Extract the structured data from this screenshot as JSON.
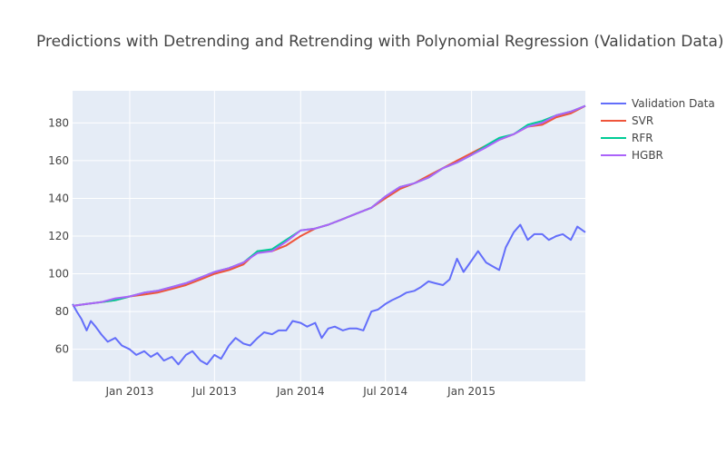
{
  "chart_data": {
    "type": "line",
    "title": "Predictions with Detrending and Retrending with Polynomial Regression (Validation Data)",
    "xlabel": "",
    "ylabel": "",
    "x_range": [
      "2012-09-01",
      "2015-09-01"
    ],
    "ylim": [
      43,
      197
    ],
    "x_ticks": [
      {
        "date": "2013-01-01",
        "label": "Jan 2013"
      },
      {
        "date": "2013-07-01",
        "label": "Jul 2013"
      },
      {
        "date": "2014-01-01",
        "label": "Jan 2014"
      },
      {
        "date": "2014-07-01",
        "label": "Jul 2014"
      },
      {
        "date": "2015-01-01",
        "label": "Jan 2015"
      }
    ],
    "y_ticks": [
      60,
      80,
      100,
      120,
      140,
      160,
      180
    ],
    "grid": true,
    "legend_position": "top-right",
    "plot_background": "#e5ecf6",
    "series": [
      {
        "name": "Validation Data",
        "color": "#636efa",
        "x": [
          "2012-09-01",
          "2012-09-10",
          "2012-09-20",
          "2012-10-01",
          "2012-10-10",
          "2012-10-20",
          "2012-11-01",
          "2012-11-15",
          "2012-12-01",
          "2012-12-15",
          "2013-01-01",
          "2013-01-15",
          "2013-02-01",
          "2013-02-15",
          "2013-03-01",
          "2013-03-15",
          "2013-04-01",
          "2013-04-15",
          "2013-05-01",
          "2013-05-15",
          "2013-06-01",
          "2013-06-15",
          "2013-07-01",
          "2013-07-15",
          "2013-08-01",
          "2013-08-15",
          "2013-09-01",
          "2013-09-15",
          "2013-10-01",
          "2013-10-15",
          "2013-11-01",
          "2013-11-15",
          "2013-12-01",
          "2013-12-15",
          "2014-01-01",
          "2014-01-15",
          "2014-02-01",
          "2014-02-15",
          "2014-03-01",
          "2014-03-15",
          "2014-04-01",
          "2014-04-15",
          "2014-05-01",
          "2014-05-15",
          "2014-06-01",
          "2014-06-15",
          "2014-07-01",
          "2014-07-15",
          "2014-08-01",
          "2014-08-15",
          "2014-09-01",
          "2014-09-15",
          "2014-10-01",
          "2014-10-15",
          "2014-11-01",
          "2014-11-15",
          "2014-12-01",
          "2014-12-15",
          "2015-01-01",
          "2015-01-15",
          "2015-02-01",
          "2015-02-15",
          "2015-03-01",
          "2015-03-15",
          "2015-04-01",
          "2015-04-15",
          "2015-05-01",
          "2015-05-15",
          "2015-06-01",
          "2015-06-15",
          "2015-07-01",
          "2015-07-15",
          "2015-08-01",
          "2015-08-15",
          "2015-09-01"
        ],
        "values": [
          84,
          80,
          76,
          70,
          75,
          72,
          68,
          64,
          66,
          62,
          60,
          57,
          59,
          56,
          58,
          54,
          56,
          52,
          57,
          59,
          54,
          52,
          57,
          55,
          62,
          66,
          63,
          62,
          66,
          69,
          68,
          70,
          70,
          75,
          74,
          72,
          74,
          66,
          71,
          72,
          70,
          71,
          71,
          70,
          80,
          81,
          84,
          86,
          88,
          90,
          91,
          93,
          96,
          95,
          94,
          97,
          108,
          101,
          107,
          112,
          106,
          104,
          102,
          114,
          122,
          126,
          118,
          121,
          121,
          118,
          120,
          121,
          118,
          125,
          122
        ]
      },
      {
        "name": "SVR",
        "color": "#ef553b",
        "x": [
          "2012-09-01",
          "2012-10-01",
          "2012-11-01",
          "2012-12-01",
          "2013-01-01",
          "2013-02-01",
          "2013-03-01",
          "2013-04-01",
          "2013-05-01",
          "2013-06-01",
          "2013-07-01",
          "2013-08-01",
          "2013-09-01",
          "2013-10-01",
          "2013-11-01",
          "2013-12-01",
          "2014-01-01",
          "2014-02-01",
          "2014-03-01",
          "2014-04-01",
          "2014-05-01",
          "2014-06-01",
          "2014-07-01",
          "2014-08-01",
          "2014-09-01",
          "2014-10-01",
          "2014-11-01",
          "2014-12-01",
          "2015-01-01",
          "2015-02-01",
          "2015-03-01",
          "2015-04-01",
          "2015-05-01",
          "2015-06-01",
          "2015-07-01",
          "2015-08-01",
          "2015-09-01"
        ],
        "values": [
          83,
          84,
          85,
          86,
          88,
          89,
          90,
          92,
          94,
          97,
          100,
          102,
          105,
          112,
          112,
          115,
          120,
          124,
          126,
          129,
          132,
          135,
          140,
          145,
          148,
          152,
          156,
          160,
          164,
          168,
          171,
          174,
          178,
          179,
          183,
          185,
          189
        ]
      },
      {
        "name": "RFR",
        "color": "#00cc96",
        "x": [
          "2012-09-01",
          "2012-10-01",
          "2012-11-01",
          "2012-12-01",
          "2013-01-01",
          "2013-02-01",
          "2013-03-01",
          "2013-04-01",
          "2013-05-01",
          "2013-06-01",
          "2013-07-01",
          "2013-08-01",
          "2013-09-01",
          "2013-10-01",
          "2013-11-01",
          "2013-12-01",
          "2014-01-01",
          "2014-02-01",
          "2014-03-01",
          "2014-04-01",
          "2014-05-01",
          "2014-06-01",
          "2014-07-01",
          "2014-08-01",
          "2014-09-01",
          "2014-10-01",
          "2014-11-01",
          "2014-12-01",
          "2015-01-01",
          "2015-02-01",
          "2015-03-01",
          "2015-04-01",
          "2015-05-01",
          "2015-06-01",
          "2015-07-01",
          "2015-08-01",
          "2015-09-01"
        ],
        "values": [
          83,
          84,
          85,
          86,
          88,
          90,
          91,
          93,
          95,
          98,
          101,
          103,
          106,
          112,
          113,
          118,
          123,
          124,
          126,
          129,
          132,
          135,
          141,
          146,
          148,
          151,
          156,
          159,
          163,
          168,
          172,
          174,
          179,
          181,
          184,
          186,
          189
        ]
      },
      {
        "name": "HGBR",
        "color": "#ab63fa",
        "x": [
          "2012-09-01",
          "2012-10-01",
          "2012-11-01",
          "2012-12-01",
          "2013-01-01",
          "2013-02-01",
          "2013-03-01",
          "2013-04-01",
          "2013-05-01",
          "2013-06-01",
          "2013-07-01",
          "2013-08-01",
          "2013-09-01",
          "2013-10-01",
          "2013-11-01",
          "2013-12-01",
          "2014-01-01",
          "2014-02-01",
          "2014-03-01",
          "2014-04-01",
          "2014-05-01",
          "2014-06-01",
          "2014-07-01",
          "2014-08-01",
          "2014-09-01",
          "2014-10-01",
          "2014-11-01",
          "2014-12-01",
          "2015-01-01",
          "2015-02-01",
          "2015-03-01",
          "2015-04-01",
          "2015-05-01",
          "2015-06-01",
          "2015-07-01",
          "2015-08-01",
          "2015-09-01"
        ],
        "values": [
          83,
          84,
          85,
          87,
          88,
          90,
          91,
          93,
          95,
          98,
          101,
          103,
          106,
          111,
          112,
          117,
          123,
          124,
          126,
          129,
          132,
          135,
          141,
          146,
          148,
          151,
          156,
          159,
          163,
          167,
          171,
          174,
          178,
          180,
          184,
          186,
          189
        ]
      }
    ]
  }
}
